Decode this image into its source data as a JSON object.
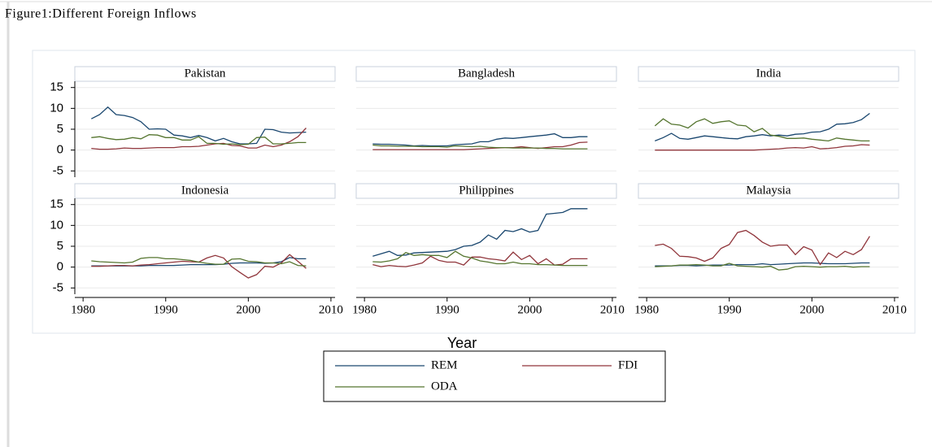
{
  "title": "Figure1:Different Foreign Inflows",
  "x_label": "Year",
  "chart_data": [
    {
      "type": "line",
      "title": "Pakistan",
      "x": [
        1981,
        1982,
        1983,
        1984,
        1985,
        1986,
        1987,
        1988,
        1989,
        1990,
        1991,
        1992,
        1993,
        1994,
        1995,
        1996,
        1997,
        1998,
        1999,
        2000,
        2001,
        2002,
        2003,
        2004,
        2005,
        2006,
        2007
      ],
      "series": [
        {
          "name": "REM",
          "color": "#1a476f",
          "values": [
            7.5,
            8.5,
            10.3,
            8.5,
            8.3,
            7.8,
            6.8,
            5,
            5.1,
            5,
            3.6,
            3.4,
            3,
            3.5,
            3,
            2.2,
            2.8,
            2,
            1.5,
            1.5,
            1.6,
            5,
            4.9,
            4.3,
            4.1,
            4.2,
            4.3
          ]
        },
        {
          "name": "FDI",
          "color": "#90353b",
          "values": [
            0.4,
            0.2,
            0.2,
            0.3,
            0.5,
            0.4,
            0.4,
            0.5,
            0.6,
            0.6,
            0.6,
            0.8,
            0.8,
            0.9,
            1.2,
            1.5,
            1.6,
            1.1,
            1.0,
            0.5,
            0.5,
            1.2,
            0.8,
            1.2,
            2,
            3.2,
            5.3
          ]
        },
        {
          "name": "ODA",
          "color": "#55752f",
          "values": [
            3,
            3.2,
            2.8,
            2.5,
            2.6,
            3,
            2.7,
            3.7,
            3.6,
            3,
            3,
            2.4,
            2.4,
            3.2,
            1.6,
            1.6,
            1.4,
            1.5,
            1.3,
            1.4,
            3,
            3.1,
            1.5,
            1.5,
            1.6,
            1.8,
            1.8
          ]
        }
      ],
      "xlim": [
        1979,
        2010.5
      ],
      "ylim": [
        -6.5,
        16.5
      ],
      "xticks": [
        1980,
        1990,
        2000,
        2010
      ],
      "yticks": [
        -5,
        0,
        5,
        10,
        15
      ],
      "grid": true
    },
    {
      "type": "line",
      "title": "Bangladesh",
      "x": [
        1981,
        1982,
        1983,
        1984,
        1985,
        1986,
        1987,
        1988,
        1989,
        1990,
        1991,
        1992,
        1993,
        1994,
        1995,
        1996,
        1997,
        1998,
        1999,
        2000,
        2001,
        2002,
        2003,
        2004,
        2005,
        2006,
        2007
      ],
      "series": [
        {
          "name": "REM",
          "color": "#1a476f",
          "values": [
            1.5,
            1.4,
            1.4,
            1.3,
            1.2,
            1.0,
            1.1,
            1.0,
            1.0,
            1.0,
            1.3,
            1.4,
            1.5,
            2,
            2,
            2.6,
            2.9,
            2.8,
            3,
            3.2,
            3.4,
            3.6,
            3.9,
            3.0,
            3.0,
            3.2,
            3.2
          ]
        },
        {
          "name": "FDI",
          "color": "#90353b",
          "values": [
            0.1,
            0.1,
            0.1,
            0.1,
            0.1,
            0.1,
            0.1,
            0.1,
            0.1,
            0.1,
            0.1,
            0.1,
            0.2,
            0.3,
            0.4,
            0.5,
            0.6,
            0.6,
            0.8,
            0.6,
            0.4,
            0.6,
            0.8,
            0.8,
            1.2,
            1.8,
            1.9
          ]
        },
        {
          "name": "ODA",
          "color": "#55752f",
          "values": [
            1.2,
            1.0,
            1.0,
            0.9,
            0.9,
            0.9,
            0.8,
            0.8,
            0.8,
            0.7,
            1.0,
            0.9,
            0.8,
            0.9,
            0.7,
            0.6,
            0.6,
            0.5,
            0.5,
            0.5,
            0.5,
            0.4,
            0.4,
            0.3,
            0.3,
            0.3,
            0.3
          ]
        }
      ],
      "xlim": [
        1979,
        2010.5
      ],
      "ylim": [
        -6.5,
        16.5
      ],
      "xticks": [
        1980,
        1990,
        2000,
        2010
      ],
      "yticks": [
        -5,
        0,
        5,
        10,
        15
      ],
      "grid": true
    },
    {
      "type": "line",
      "title": "India",
      "x": [
        1981,
        1982,
        1983,
        1984,
        1985,
        1986,
        1987,
        1988,
        1989,
        1990,
        1991,
        1992,
        1993,
        1994,
        1995,
        1996,
        1997,
        1998,
        1999,
        2000,
        2001,
        2002,
        2003,
        2004,
        2005,
        2006,
        2007
      ],
      "series": [
        {
          "name": "REM",
          "color": "#1a476f",
          "values": [
            2.2,
            3,
            4,
            2.8,
            2.6,
            3,
            3.4,
            3.2,
            3,
            2.8,
            2.7,
            3.2,
            3.4,
            3.7,
            3.4,
            3.6,
            3.4,
            3.8,
            3.9,
            4.3,
            4.4,
            5,
            6.2,
            6.3,
            6.6,
            7.3,
            8.8
          ]
        },
        {
          "name": "FDI",
          "color": "#90353b",
          "values": [
            0,
            0,
            0,
            0,
            0,
            0,
            0,
            0,
            0,
            0,
            0,
            0,
            0,
            0.1,
            0.2,
            0.3,
            0.5,
            0.6,
            0.5,
            0.8,
            0.3,
            0.4,
            0.6,
            0.9,
            1.0,
            1.3,
            1.2
          ]
        },
        {
          "name": "ODA",
          "color": "#55752f",
          "values": [
            5.8,
            7.5,
            6.2,
            6,
            5.3,
            6.8,
            7.5,
            6.4,
            6.8,
            7,
            6,
            5.8,
            4.4,
            5.2,
            3.6,
            3.3,
            2.8,
            2.8,
            2.9,
            2.6,
            2.4,
            2.2,
            2.9,
            2.6,
            2.4,
            2.2,
            2.2
          ]
        }
      ],
      "xlim": [
        1979,
        2010.5
      ],
      "ylim": [
        -6.5,
        16.5
      ],
      "xticks": [
        1980,
        1990,
        2000,
        2010
      ],
      "yticks": [
        -5,
        0,
        5,
        10,
        15
      ],
      "grid": true
    },
    {
      "type": "line",
      "title": "Indonesia",
      "x": [
        1981,
        1982,
        1983,
        1984,
        1985,
        1986,
        1987,
        1988,
        1989,
        1990,
        1991,
        1992,
        1993,
        1994,
        1995,
        1996,
        1997,
        1998,
        1999,
        2000,
        2001,
        2002,
        2003,
        2004,
        2005,
        2006,
        2007
      ],
      "series": [
        {
          "name": "REM",
          "color": "#1a476f",
          "values": [
            0.3,
            0.3,
            0.3,
            0.3,
            0.3,
            0.3,
            0.3,
            0.4,
            0.4,
            0.4,
            0.4,
            0.5,
            0.6,
            0.6,
            0.6,
            0.6,
            0.7,
            0.9,
            1.0,
            1.0,
            1.0,
            0.9,
            1.0,
            1.3,
            2.3,
            2.0,
            2.0
          ]
        },
        {
          "name": "FDI",
          "color": "#90353b",
          "values": [
            0.2,
            0.2,
            0.3,
            0.4,
            0.4,
            0.3,
            0.5,
            0.6,
            0.8,
            1.0,
            1.2,
            1.4,
            1.3,
            1.2,
            2.2,
            2.8,
            2.2,
            0.1,
            -1.3,
            -2.6,
            -1.8,
            0.2,
            0,
            1.0,
            3.0,
            1.4,
            -0.3
          ]
        },
        {
          "name": "ODA",
          "color": "#55752f",
          "values": [
            1.5,
            1.3,
            1.2,
            1.1,
            1.0,
            1.2,
            2.1,
            2.3,
            2.3,
            2.0,
            2.0,
            1.8,
            1.6,
            1.2,
            0.9,
            0.7,
            0.7,
            1.9,
            2.0,
            1.4,
            1.3,
            1.0,
            1.0,
            0.8,
            1.3,
            0.4,
            0.3
          ]
        }
      ],
      "xlim": [
        1979,
        2010.5
      ],
      "ylim": [
        -6.5,
        16.5
      ],
      "xticks": [
        1980,
        1990,
        2000,
        2010
      ],
      "yticks": [
        -5,
        0,
        5,
        10,
        15
      ],
      "grid": true
    },
    {
      "type": "line",
      "title": "Philippines",
      "x": [
        1981,
        1982,
        1983,
        1984,
        1985,
        1986,
        1987,
        1988,
        1989,
        1990,
        1991,
        1992,
        1993,
        1994,
        1995,
        1996,
        1997,
        1998,
        1999,
        2000,
        2001,
        2002,
        2003,
        2004,
        2005,
        2006,
        2007
      ],
      "series": [
        {
          "name": "REM",
          "color": "#1a476f",
          "values": [
            2.6,
            3.2,
            3.8,
            2.8,
            2.9,
            3.4,
            3.5,
            3.6,
            3.7,
            3.8,
            4.2,
            5,
            5.2,
            6,
            7.7,
            6.7,
            8.8,
            8.5,
            9.2,
            8.4,
            8.8,
            12.7,
            12.9,
            13.1,
            14,
            14,
            14
          ]
        },
        {
          "name": "FDI",
          "color": "#90353b",
          "values": [
            0.6,
            0.1,
            0.4,
            0.2,
            0.1,
            0.5,
            1.0,
            2.6,
            1.6,
            1.2,
            1.2,
            0.5,
            2.4,
            2.4,
            2.0,
            1.8,
            1.5,
            3.6,
            1.8,
            2.8,
            0.8,
            2.0,
            0.5,
            0.7,
            2.0,
            2.0,
            2.0
          ]
        },
        {
          "name": "ODA",
          "color": "#55752f",
          "values": [
            1.3,
            1.2,
            1.5,
            2,
            3.5,
            2.8,
            3,
            2.8,
            2.8,
            2.3,
            3.8,
            2.6,
            2.2,
            1.5,
            1.2,
            0.8,
            0.8,
            1.2,
            0.8,
            0.8,
            0.6,
            0.6,
            0.5,
            0.4,
            0.4,
            0.4,
            0.4
          ]
        }
      ],
      "xlim": [
        1979,
        2010.5
      ],
      "ylim": [
        -6.5,
        16.5
      ],
      "xticks": [
        1980,
        1990,
        2000,
        2010
      ],
      "yticks": [
        -5,
        0,
        5,
        10,
        15
      ],
      "grid": true
    },
    {
      "type": "line",
      "title": "Malaysia",
      "x": [
        1981,
        1982,
        1983,
        1984,
        1985,
        1986,
        1987,
        1988,
        1989,
        1990,
        1991,
        1992,
        1993,
        1994,
        1995,
        1996,
        1997,
        1998,
        1999,
        2000,
        2001,
        2002,
        2003,
        2004,
        2005,
        2006,
        2007
      ],
      "series": [
        {
          "name": "REM",
          "color": "#1a476f",
          "values": [
            0.3,
            0.3,
            0.3,
            0.4,
            0.4,
            0.3,
            0.4,
            0.5,
            0.5,
            0.5,
            0.6,
            0.6,
            0.6,
            0.8,
            0.6,
            0.7,
            0.8,
            0.9,
            1.0,
            1.0,
            0.9,
            0.8,
            0.8,
            0.8,
            0.9,
            1.0,
            1.0
          ]
        },
        {
          "name": "FDI",
          "color": "#90353b",
          "values": [
            5.2,
            5.5,
            4.5,
            2.6,
            2.5,
            2.2,
            1.4,
            2.2,
            4.5,
            5.4,
            8.3,
            8.8,
            7.6,
            6.0,
            5.0,
            5.3,
            5.3,
            3.0,
            4.9,
            4.1,
            0.6,
            3.4,
            2.3,
            3.8,
            3.0,
            4.2,
            7.4
          ]
        },
        {
          "name": "ODA",
          "color": "#55752f",
          "values": [
            0.1,
            0.2,
            0.3,
            0.5,
            0.5,
            0.6,
            0.5,
            0.3,
            0.3,
            0.9,
            0.3,
            0.2,
            0.1,
            0.0,
            0.2,
            -0.7,
            -0.5,
            0.1,
            0.2,
            0.1,
            0.0,
            0.1,
            0.1,
            0.2,
            0,
            0.1,
            0.1
          ]
        }
      ],
      "xlim": [
        1979,
        2010.5
      ],
      "ylim": [
        -6.5,
        16.5
      ],
      "xticks": [
        1980,
        1990,
        2000,
        2010
      ],
      "yticks": [
        -5,
        0,
        5,
        10,
        15
      ],
      "grid": true
    }
  ]
}
